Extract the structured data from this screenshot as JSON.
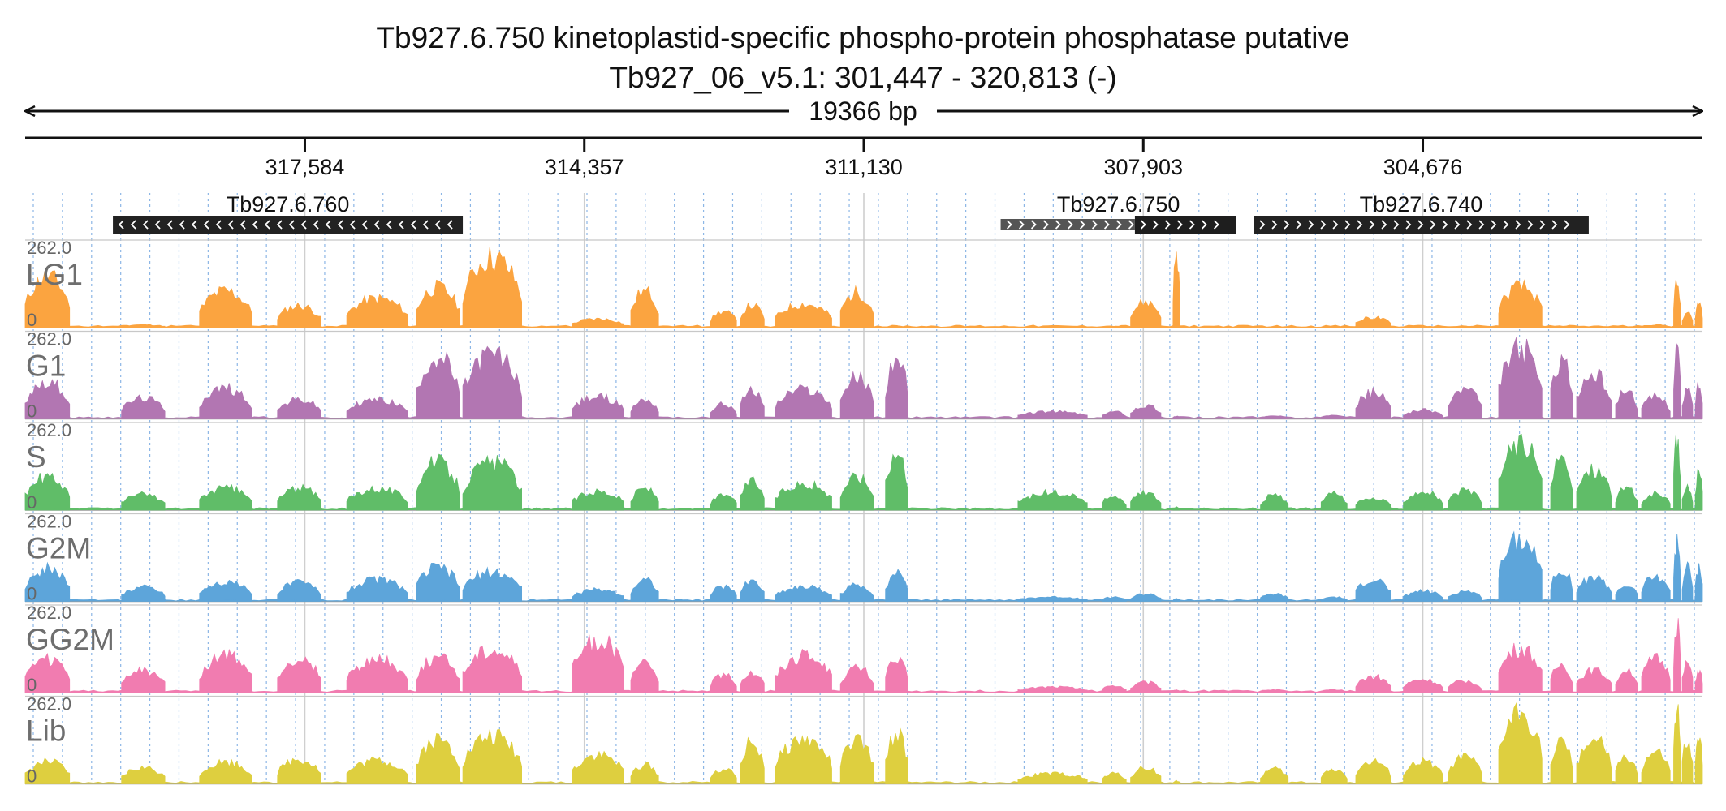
{
  "header": {
    "title": "Tb927.6.750  kinetoplastid-specific phospho-protein phosphatase  putative",
    "subtitle": "Tb927_06_v5.1: 301,447 - 320,813 (-)",
    "span_label": "19366 bp"
  },
  "chart_data": {
    "type": "area",
    "region": {
      "start": 301447,
      "end": 320813,
      "strand": "-"
    },
    "ticks": [
      {
        "pos": 317584,
        "label": "317,584"
      },
      {
        "pos": 314357,
        "label": "314,357"
      },
      {
        "pos": 311130,
        "label": "311,130"
      },
      {
        "pos": 307903,
        "label": "307,903"
      },
      {
        "pos": 304676,
        "label": "304,676"
      }
    ],
    "genes": [
      {
        "name": "Tb927.6.760",
        "start": 315760,
        "end": 319800,
        "direction": "left",
        "color": "#222222"
      },
      {
        "name": "Tb927.6.750",
        "start": 306830,
        "end": 309550,
        "direction": "right",
        "color": "#555555",
        "cds_start": 306830,
        "cds_end": 308000
      },
      {
        "name": "Tb927.6.740",
        "start": 302760,
        "end": 306630,
        "direction": "right",
        "color": "#222222"
      }
    ],
    "track_ymax": "262.0",
    "track_ymin": "0",
    "tracks": [
      {
        "name": "LG1",
        "color": "#FBA440"
      },
      {
        "name": "G1",
        "color": "#B276B2"
      },
      {
        "name": "S",
        "color": "#60BD68"
      },
      {
        "name": "G2M",
        "color": "#5DA5DA"
      },
      {
        "name": "GG2M",
        "color": "#F17CB0"
      },
      {
        "name": "Lib",
        "color": "#DECF3F"
      }
    ],
    "peaks": [
      {
        "start": 320300,
        "end": 320813,
        "h": [
          0.7,
          0.5,
          0.45,
          0.45,
          0.45,
          0.3
        ]
      },
      {
        "start": 319200,
        "end": 319700,
        "h": [
          0.04,
          0.28,
          0.22,
          0.2,
          0.3,
          0.22
        ]
      },
      {
        "start": 318200,
        "end": 318800,
        "h": [
          0.5,
          0.42,
          0.3,
          0.26,
          0.5,
          0.3
        ]
      },
      {
        "start": 317400,
        "end": 317900,
        "h": [
          0.3,
          0.26,
          0.3,
          0.26,
          0.45,
          0.34
        ]
      },
      {
        "start": 316400,
        "end": 317100,
        "h": [
          0.4,
          0.26,
          0.3,
          0.3,
          0.45,
          0.32
        ]
      },
      {
        "start": 315800,
        "end": 316300,
        "h": [
          0.55,
          0.84,
          0.65,
          0.46,
          0.48,
          0.6
        ]
      },
      {
        "start": 315080,
        "end": 315760,
        "h": [
          0.96,
          0.88,
          0.65,
          0.4,
          0.6,
          0.65
        ]
      },
      {
        "start": 313900,
        "end": 314500,
        "h": [
          0.12,
          0.3,
          0.26,
          0.16,
          0.72,
          0.4
        ]
      },
      {
        "start": 313500,
        "end": 313820,
        "h": [
          0.5,
          0.26,
          0.3,
          0.3,
          0.4,
          0.26
        ]
      },
      {
        "start": 312600,
        "end": 312900,
        "h": [
          0.22,
          0.2,
          0.2,
          0.2,
          0.24,
          0.2
        ]
      },
      {
        "start": 312280,
        "end": 312560,
        "h": [
          0.3,
          0.38,
          0.4,
          0.28,
          0.28,
          0.56
        ]
      },
      {
        "start": 311500,
        "end": 312150,
        "h": [
          0.32,
          0.4,
          0.36,
          0.2,
          0.5,
          0.6
        ]
      },
      {
        "start": 311020,
        "end": 311400,
        "h": [
          0.48,
          0.56,
          0.46,
          0.22,
          0.34,
          0.58
        ]
      },
      {
        "start": 310620,
        "end": 310880,
        "h": [
          0.02,
          0.82,
          0.8,
          0.4,
          0.44,
          0.68
        ]
      },
      {
        "start": 308550,
        "end": 309350,
        "h": [
          0.01,
          0.1,
          0.24,
          0.06,
          0.08,
          0.14
        ]
      },
      {
        "start": 308100,
        "end": 308380,
        "h": [
          0.02,
          0.1,
          0.2,
          0.06,
          0.1,
          0.14
        ]
      },
      {
        "start": 307700,
        "end": 308050,
        "h": [
          0.35,
          0.18,
          0.24,
          0.1,
          0.14,
          0.22
        ]
      },
      {
        "start": 307480,
        "end": 307560,
        "h": [
          0.96,
          0.04,
          0.04,
          0.04,
          0.04,
          0.04
        ]
      },
      {
        "start": 306230,
        "end": 306550,
        "h": [
          0.01,
          0.04,
          0.2,
          0.1,
          0.04,
          0.2
        ]
      },
      {
        "start": 305550,
        "end": 305850,
        "h": [
          0.01,
          0.06,
          0.22,
          0.06,
          0.04,
          0.2
        ]
      },
      {
        "start": 305050,
        "end": 305450,
        "h": [
          0.14,
          0.36,
          0.16,
          0.3,
          0.22,
          0.3
        ]
      },
      {
        "start": 304450,
        "end": 304900,
        "h": [
          0.02,
          0.12,
          0.26,
          0.14,
          0.18,
          0.3
        ]
      },
      {
        "start": 304000,
        "end": 304380,
        "h": [
          0.02,
          0.4,
          0.26,
          0.14,
          0.16,
          0.36
        ]
      },
      {
        "start": 303300,
        "end": 303800,
        "h": [
          0.56,
          0.96,
          0.92,
          0.88,
          0.6,
          0.98
        ]
      },
      {
        "start": 302950,
        "end": 303200,
        "h": [
          0.02,
          0.82,
          0.68,
          0.46,
          0.38,
          0.56
        ]
      },
      {
        "start": 302500,
        "end": 302900,
        "h": [
          0.01,
          0.6,
          0.56,
          0.32,
          0.3,
          0.6
        ]
      },
      {
        "start": 302200,
        "end": 302450,
        "h": [
          0.01,
          0.4,
          0.3,
          0.22,
          0.32,
          0.36
        ]
      },
      {
        "start": 301820,
        "end": 302150,
        "h": [
          0.04,
          0.3,
          0.22,
          0.34,
          0.46,
          0.42
        ]
      },
      {
        "start": 301700,
        "end": 301780,
        "h": [
          0.6,
          0.98,
          0.98,
          0.78,
          0.98,
          0.98
        ]
      },
      {
        "start": 301560,
        "end": 301680,
        "h": [
          0.2,
          0.4,
          0.3,
          0.46,
          0.4,
          0.6
        ]
      },
      {
        "start": 301447,
        "end": 301530,
        "h": [
          0.34,
          0.46,
          0.5,
          0.48,
          0.3,
          0.6
        ]
      }
    ]
  }
}
